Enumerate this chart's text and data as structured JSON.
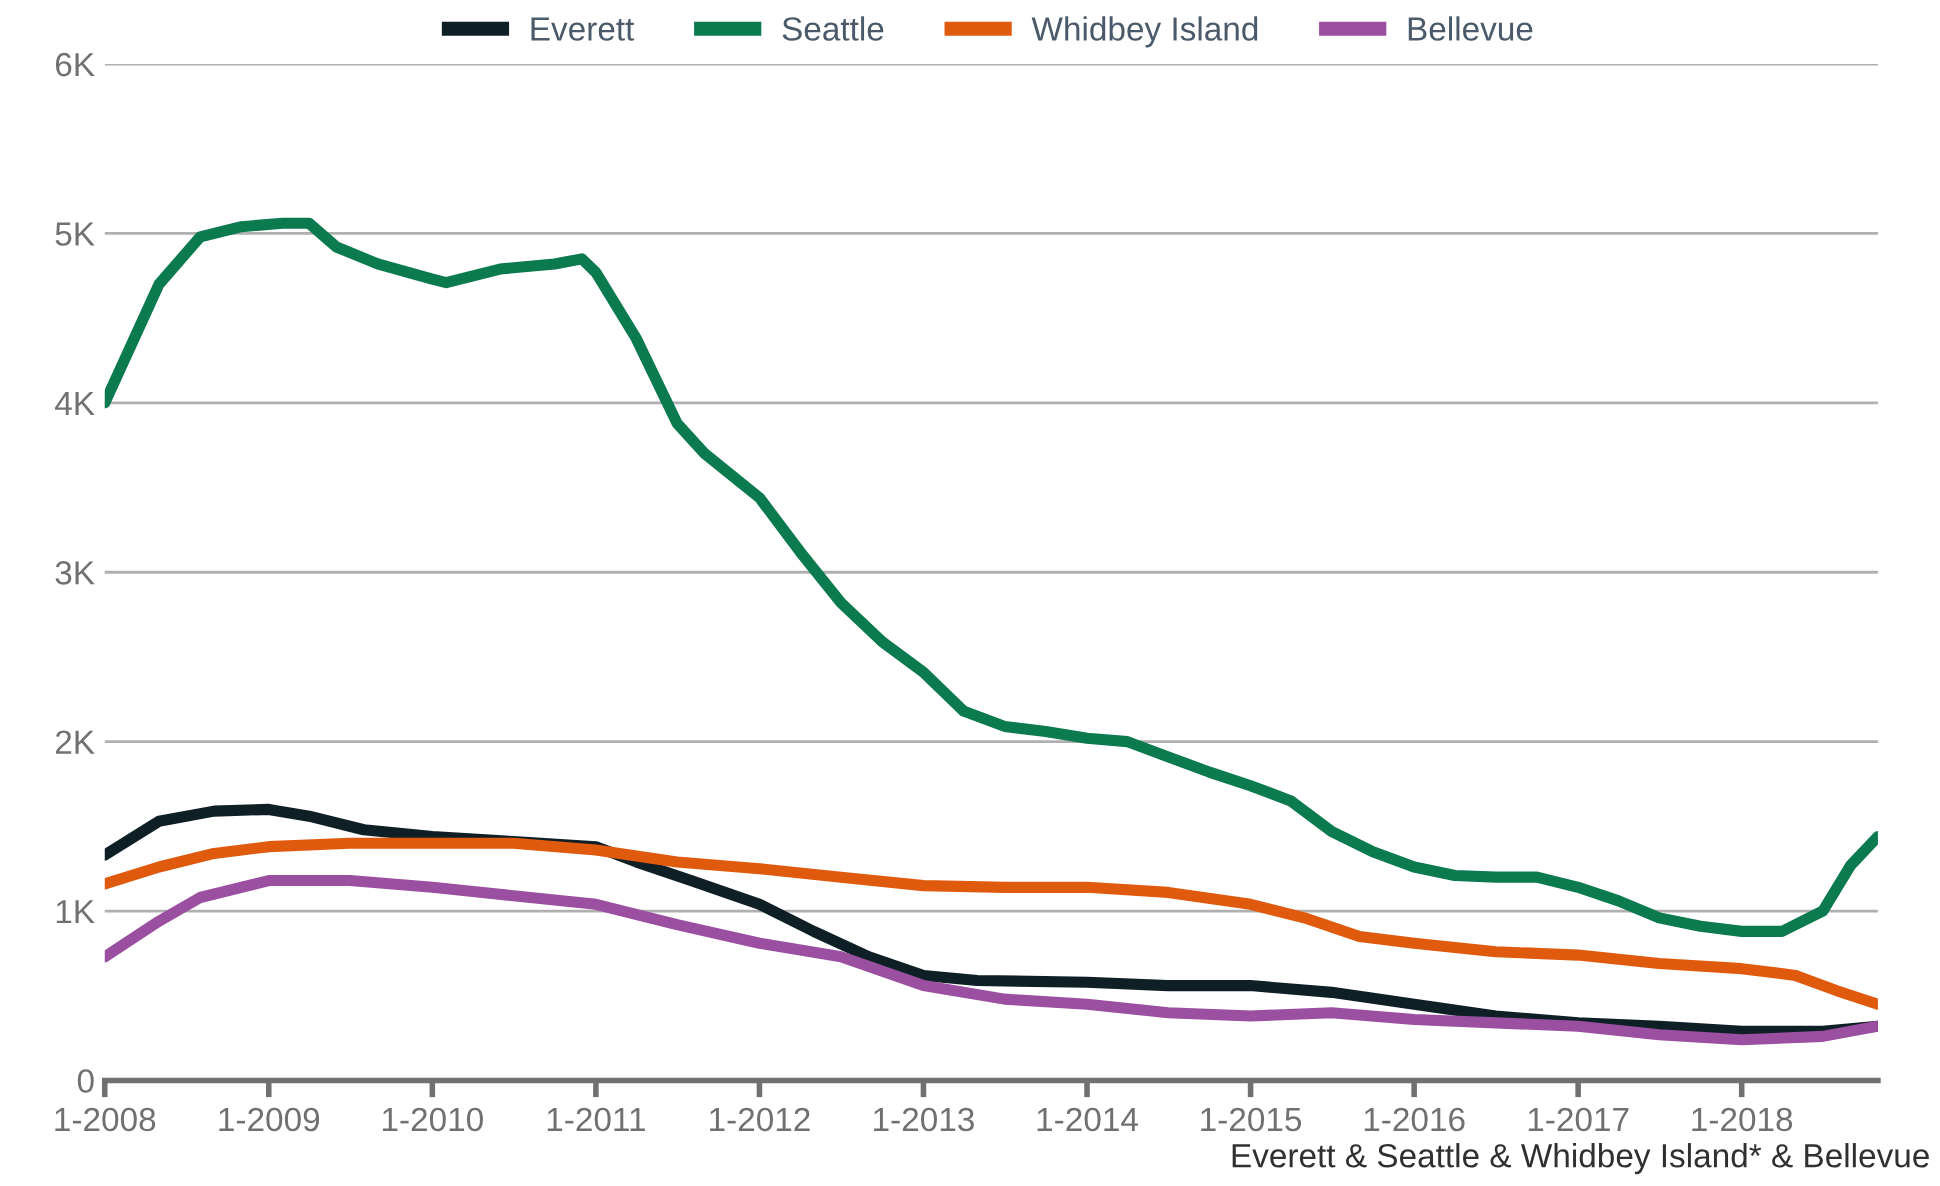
{
  "chart_data": {
    "type": "line",
    "x": [
      "2008-01",
      "2008-05",
      "2008-08",
      "2008-11",
      "2009-02",
      "2009-04",
      "2009-06",
      "2009-09",
      "2010-01",
      "2010-02",
      "2010-06",
      "2010-10",
      "2010-12",
      "2011-01",
      "2011-04",
      "2011-07",
      "2011-09",
      "2012-01",
      "2012-04",
      "2012-07",
      "2012-10",
      "2013-01",
      "2013-04",
      "2013-07",
      "2013-10",
      "2014-01",
      "2014-04",
      "2014-07",
      "2014-10",
      "2015-01",
      "2015-04",
      "2015-07",
      "2015-10",
      "2016-01",
      "2016-04",
      "2016-07",
      "2016-10",
      "2017-01",
      "2017-04",
      "2017-07",
      "2017-10",
      "2018-01",
      "2018-04",
      "2018-07",
      "2018-09",
      "2018-11"
    ],
    "series": [
      {
        "name": "Everett",
        "color": "#0e1f26",
        "x": [
          "2008-01",
          "2008-05",
          "2008-09",
          "2009-01",
          "2009-04",
          "2009-08",
          "2010-01",
          "2010-07",
          "2011-01",
          "2011-04",
          "2011-08",
          "2012-01",
          "2012-05",
          "2012-09",
          "2013-01",
          "2013-05",
          "2014-01",
          "2014-07",
          "2015-01",
          "2015-07",
          "2016-01",
          "2016-07",
          "2017-01",
          "2017-07",
          "2018-01",
          "2018-07",
          "2018-11"
        ],
        "values": [
          1330,
          1530,
          1590,
          1600,
          1560,
          1480,
          1440,
          1410,
          1380,
          1290,
          1180,
          1040,
          880,
          730,
          620,
          590,
          580,
          560,
          560,
          520,
          450,
          380,
          340,
          320,
          290,
          290,
          320
        ]
      },
      {
        "name": "Seattle",
        "color": "#0b7a4e",
        "values": [
          4000,
          4700,
          4980,
          5040,
          5060,
          5060,
          4920,
          4820,
          4730,
          4710,
          4790,
          4820,
          4850,
          4770,
          4380,
          3880,
          3700,
          3440,
          3120,
          2820,
          2590,
          2410,
          2180,
          2090,
          2060,
          2020,
          2000,
          1910,
          1820,
          1740,
          1650,
          1470,
          1350,
          1260,
          1210,
          1200,
          1200,
          1140,
          1060,
          960,
          910,
          880,
          880,
          1000,
          1270,
          1440
        ]
      },
      {
        "name": "Whidbey Island",
        "color": "#e05a0e",
        "x": [
          "2008-01",
          "2008-05",
          "2008-09",
          "2009-01",
          "2009-07",
          "2010-01",
          "2010-07",
          "2011-01",
          "2011-07",
          "2012-01",
          "2012-07",
          "2013-01",
          "2013-07",
          "2014-01",
          "2014-07",
          "2015-01",
          "2015-05",
          "2015-09",
          "2016-01",
          "2016-07",
          "2017-01",
          "2017-07",
          "2018-01",
          "2018-05",
          "2018-08",
          "2018-11"
        ],
        "values": [
          1160,
          1260,
          1340,
          1380,
          1400,
          1400,
          1400,
          1360,
          1290,
          1250,
          1200,
          1150,
          1140,
          1140,
          1110,
          1040,
          960,
          850,
          810,
          760,
          740,
          690,
          660,
          620,
          530,
          450
        ]
      },
      {
        "name": "Bellevue",
        "color": "#9b4fa0",
        "x": [
          "2008-01",
          "2008-05",
          "2008-08",
          "2009-01",
          "2009-07",
          "2010-01",
          "2010-07",
          "2011-01",
          "2011-07",
          "2012-01",
          "2012-07",
          "2013-01",
          "2013-07",
          "2014-01",
          "2014-07",
          "2015-01",
          "2015-07",
          "2016-01",
          "2016-07",
          "2017-01",
          "2017-07",
          "2018-01",
          "2018-07",
          "2018-11"
        ],
        "values": [
          730,
          940,
          1080,
          1180,
          1180,
          1140,
          1090,
          1040,
          920,
          810,
          730,
          560,
          480,
          450,
          400,
          380,
          400,
          360,
          340,
          320,
          270,
          240,
          260,
          320
        ]
      }
    ],
    "xlim": [
      "2008-01",
      "2018-11"
    ],
    "xticks": [
      {
        "value": "2008-01",
        "label": "1-2008"
      },
      {
        "value": "2009-01",
        "label": "1-2009"
      },
      {
        "value": "2010-01",
        "label": "1-2010"
      },
      {
        "value": "2011-01",
        "label": "1-2011"
      },
      {
        "value": "2012-01",
        "label": "1-2012"
      },
      {
        "value": "2013-01",
        "label": "1-2013"
      },
      {
        "value": "2014-01",
        "label": "1-2014"
      },
      {
        "value": "2015-01",
        "label": "1-2015"
      },
      {
        "value": "2016-01",
        "label": "1-2016"
      },
      {
        "value": "2017-01",
        "label": "1-2017"
      },
      {
        "value": "2018-01",
        "label": "1-2018"
      }
    ],
    "ylim": [
      0,
      6000
    ],
    "yticks": [
      0,
      {
        "value": 1000,
        "label": "1K"
      },
      {
        "value": 2000,
        "label": "2K"
      },
      {
        "value": 3000,
        "label": "3K"
      },
      {
        "value": 4000,
        "label": "4K"
      },
      {
        "value": 5000,
        "label": "5K"
      },
      {
        "value": 6000,
        "label": "6K"
      }
    ],
    "grid": "y",
    "legend": "top",
    "marker": "none",
    "line_style": "solid",
    "annotations": [
      "Everett & Seattle & Whidbey Island* & Bellevue"
    ]
  }
}
